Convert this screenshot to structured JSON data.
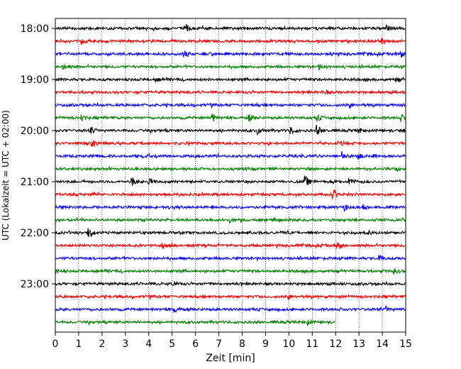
{
  "chart_data": {
    "type": "line",
    "title": "",
    "xlabel": "Zeit  [min]",
    "ylabel": "UTC (Lokalzeit = UTC + 02:00)",
    "xlim": [
      0,
      15
    ],
    "x_ticks": [
      "0",
      "1",
      "2",
      "3",
      "4",
      "5",
      "6",
      "7",
      "8",
      "9",
      "10",
      "11",
      "12",
      "13",
      "14",
      "15"
    ],
    "y_ticks": [
      "18:00",
      "19:00",
      "20:00",
      "21:00",
      "22:00",
      "23:00"
    ],
    "grid": "vertical dotted",
    "trace_interval_min": 15,
    "colors_cycle": [
      "#000000",
      "#ff0000",
      "#0000ff",
      "#008000"
    ],
    "series": [
      {
        "start": "18:00",
        "end_min": 15,
        "color": "#000000",
        "events": [
          {
            "t": 5.6,
            "amp": 0.8
          },
          {
            "t": 14.2,
            "amp": 0.6
          }
        ]
      },
      {
        "start": "18:15",
        "end_min": 15,
        "color": "#ff0000",
        "events": [
          {
            "t": 1.1,
            "amp": 0.5
          },
          {
            "t": 14.0,
            "amp": 0.5
          }
        ]
      },
      {
        "start": "18:30",
        "end_min": 15,
        "color": "#0000ff",
        "events": [
          {
            "t": 5.5,
            "amp": 0.6
          },
          {
            "t": 14.8,
            "amp": 0.6
          }
        ]
      },
      {
        "start": "18:45",
        "end_min": 15,
        "color": "#008000",
        "events": [
          {
            "t": 0.3,
            "amp": 0.6
          },
          {
            "t": 11.3,
            "amp": 0.4
          }
        ]
      },
      {
        "start": "19:00",
        "end_min": 15,
        "color": "#000000",
        "events": [
          {
            "t": 4.3,
            "amp": 0.4
          },
          {
            "t": 14.6,
            "amp": 0.4
          }
        ]
      },
      {
        "start": "19:15",
        "end_min": 15,
        "color": "#ff0000",
        "events": [
          {
            "t": 11.5,
            "amp": 0.5
          }
        ]
      },
      {
        "start": "19:30",
        "end_min": 15,
        "color": "#0000ff",
        "events": [
          {
            "t": 12.6,
            "amp": 0.6
          }
        ]
      },
      {
        "start": "19:45",
        "end_min": 15,
        "color": "#008000",
        "events": [
          {
            "t": 1.1,
            "amp": 0.8
          },
          {
            "t": 6.7,
            "amp": 1.0
          },
          {
            "t": 8.3,
            "amp": 0.6
          },
          {
            "t": 11.2,
            "amp": 0.6
          },
          {
            "t": 14.8,
            "amp": 0.6
          }
        ]
      },
      {
        "start": "20:00",
        "end_min": 15,
        "color": "#000000",
        "events": [
          {
            "t": 1.5,
            "amp": 0.7
          },
          {
            "t": 8.7,
            "amp": 0.6
          },
          {
            "t": 10.1,
            "amp": 0.6
          },
          {
            "t": 11.2,
            "amp": 1.0
          },
          {
            "t": 13.0,
            "amp": 0.5
          }
        ]
      },
      {
        "start": "20:15",
        "end_min": 15,
        "color": "#ff0000",
        "events": [
          {
            "t": 1.6,
            "amp": 0.6
          },
          {
            "t": 12.2,
            "amp": 0.4
          }
        ]
      },
      {
        "start": "20:30",
        "end_min": 15,
        "color": "#0000ff",
        "events": [
          {
            "t": 12.3,
            "amp": 0.8
          },
          {
            "t": 13.0,
            "amp": 0.5
          }
        ]
      },
      {
        "start": "20:45",
        "end_min": 15,
        "color": "#008000",
        "events": [
          {
            "t": 14.6,
            "amp": 0.5
          }
        ]
      },
      {
        "start": "21:00",
        "end_min": 15,
        "color": "#000000",
        "events": [
          {
            "t": 3.3,
            "amp": 0.7
          },
          {
            "t": 4.0,
            "amp": 0.5
          },
          {
            "t": 10.7,
            "amp": 1.0
          },
          {
            "t": 12.6,
            "amp": 0.7
          }
        ]
      },
      {
        "start": "21:15",
        "end_min": 15,
        "color": "#ff0000",
        "events": [
          {
            "t": 11.9,
            "amp": 0.7
          }
        ]
      },
      {
        "start": "21:30",
        "end_min": 15,
        "color": "#0000ff",
        "events": [
          {
            "t": 12.4,
            "amp": 0.6
          },
          {
            "t": 13.2,
            "amp": 0.5
          }
        ]
      },
      {
        "start": "21:45",
        "end_min": 15,
        "color": "#008000",
        "events": [
          {
            "t": 7.5,
            "amp": 0.4
          }
        ]
      },
      {
        "start": "22:00",
        "end_min": 15,
        "color": "#000000",
        "events": [
          {
            "t": 1.4,
            "amp": 1.0
          },
          {
            "t": 13.4,
            "amp": 0.4
          }
        ]
      },
      {
        "start": "22:15",
        "end_min": 15,
        "color": "#ff0000",
        "events": [
          {
            "t": 4.6,
            "amp": 0.5
          },
          {
            "t": 12.1,
            "amp": 0.8
          }
        ]
      },
      {
        "start": "22:30",
        "end_min": 15,
        "color": "#0000ff",
        "events": [
          {
            "t": 13.9,
            "amp": 0.6
          }
        ]
      },
      {
        "start": "22:45",
        "end_min": 15,
        "color": "#008000",
        "events": [
          {
            "t": 0.0,
            "amp": 0.4
          },
          {
            "t": 14.5,
            "amp": 0.6
          }
        ]
      },
      {
        "start": "23:00",
        "end_min": 15,
        "color": "#000000",
        "events": [
          {
            "t": 5.0,
            "amp": 0.4
          }
        ]
      },
      {
        "start": "23:15",
        "end_min": 15,
        "color": "#ff0000",
        "events": [
          {
            "t": 10.0,
            "amp": 0.5
          }
        ]
      },
      {
        "start": "23:30",
        "end_min": 15,
        "color": "#0000ff",
        "events": [
          {
            "t": 5.1,
            "amp": 0.6
          },
          {
            "t": 14.2,
            "amp": 0.4
          }
        ]
      },
      {
        "start": "23:45",
        "end_min": 12,
        "color": "#008000",
        "events": [
          {
            "t": 10.8,
            "amp": 0.5
          }
        ]
      }
    ]
  }
}
